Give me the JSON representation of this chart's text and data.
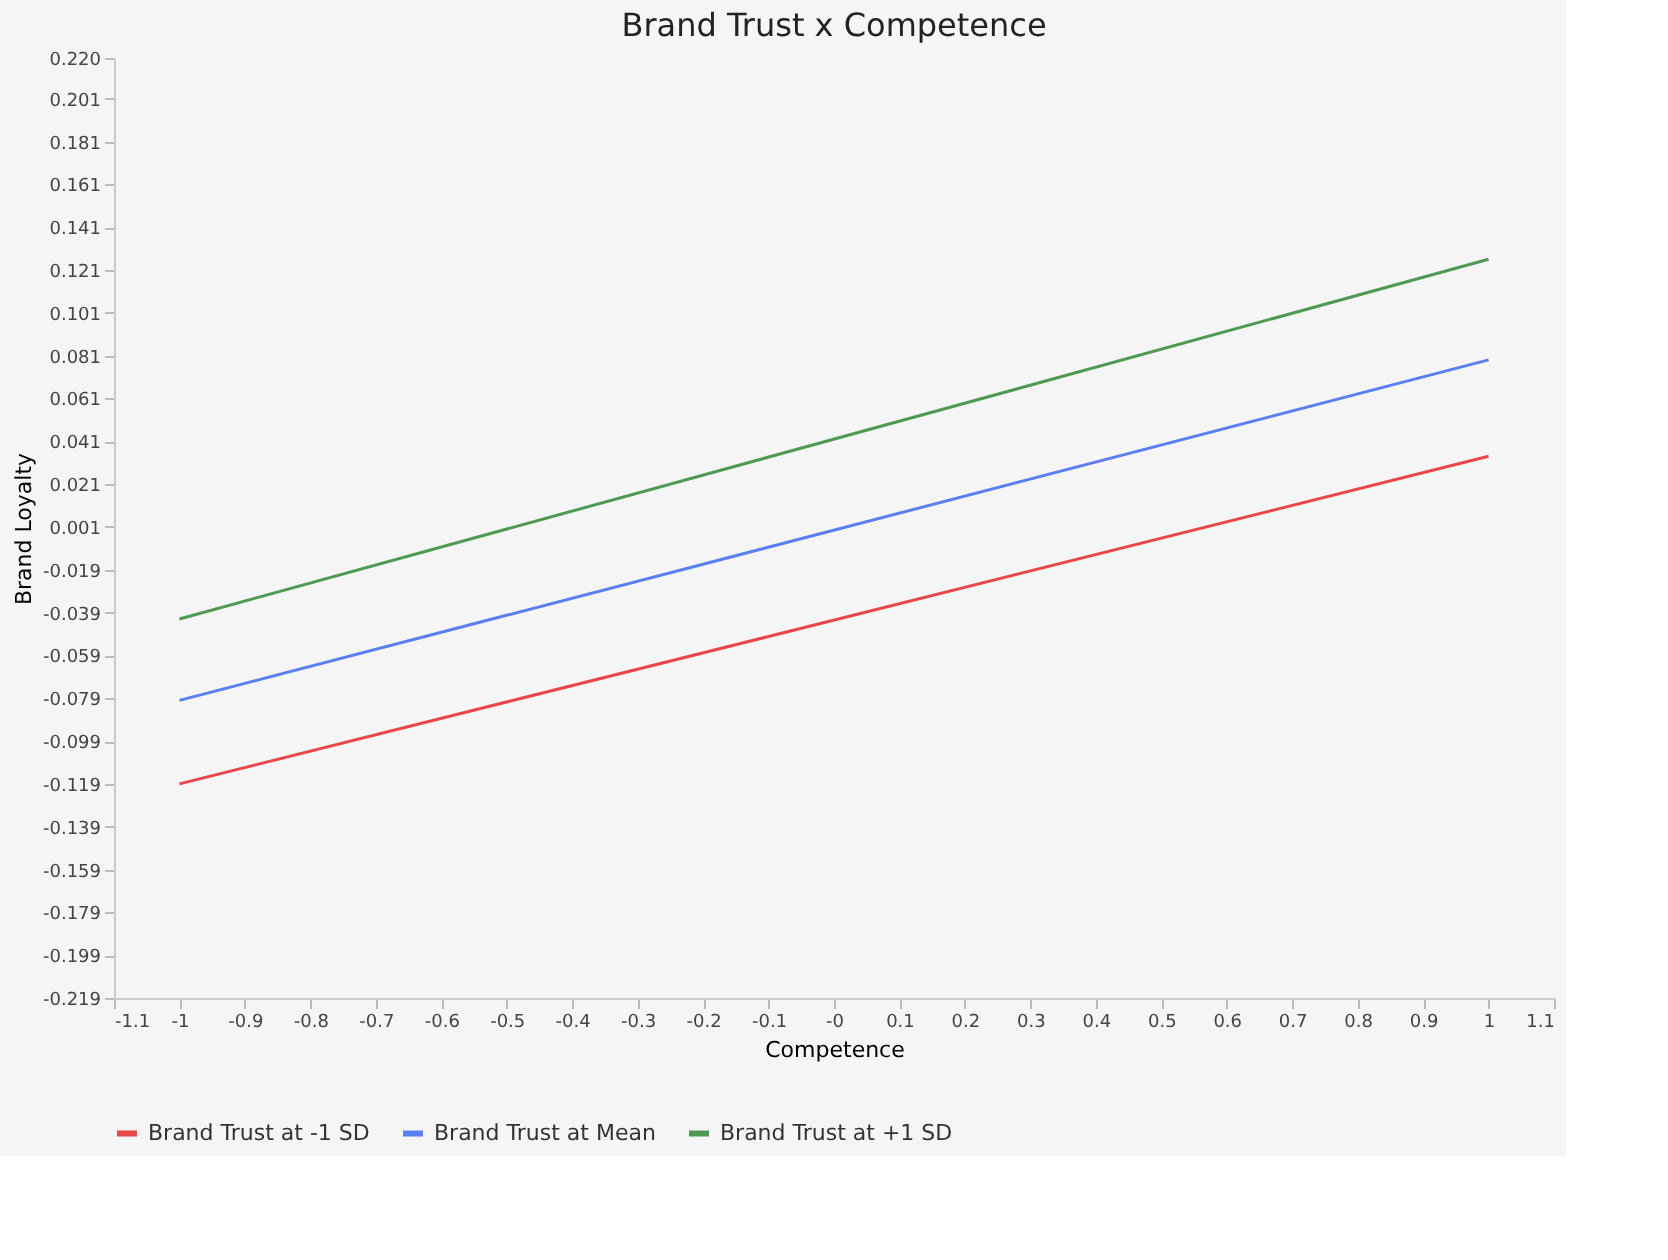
{
  "chart_data": {
    "type": "line",
    "title": "Brand Trust x Competence",
    "xlabel": "Competence",
    "ylabel": "Brand Loyalty",
    "x": [
      -1,
      1
    ],
    "series": [
      {
        "name": "Brand Trust at -1 SD",
        "color": "#e8474b",
        "values": [
          -0.119,
          0.034
        ]
      },
      {
        "name": "Brand Trust at Mean",
        "color": "#5b7ff0",
        "values": [
          -0.08,
          0.079
        ]
      },
      {
        "name": "Brand Trust at +1 SD",
        "color": "#4f9a52",
        "values": [
          -0.042,
          0.126
        ]
      }
    ],
    "xlim": [
      -1.1,
      1.1
    ],
    "xticks": [
      -1.1,
      -1,
      -0.9,
      -0.8,
      -0.7,
      -0.6,
      -0.5,
      -0.4,
      -0.3,
      -0.2,
      -0.1,
      {
        "value": 0,
        "label": "-0"
      },
      0.1,
      0.2,
      0.3,
      0.4,
      0.5,
      0.6,
      0.7,
      0.8,
      0.9,
      1,
      1.1
    ],
    "ylim": [
      -0.219,
      0.22
    ],
    "yticks": [
      -0.219,
      -0.199,
      -0.179,
      -0.159,
      -0.139,
      -0.119,
      -0.099,
      -0.079,
      -0.059,
      -0.039,
      -0.019,
      0.001,
      0.021,
      0.041,
      0.061,
      0.081,
      0.101,
      0.121,
      0.141,
      0.161,
      0.181,
      0.201,
      {
        "value": 0.22,
        "label": "0.220"
      }
    ],
    "grid": false,
    "legend": "bottom",
    "marker": "none",
    "line_style": "solid"
  }
}
